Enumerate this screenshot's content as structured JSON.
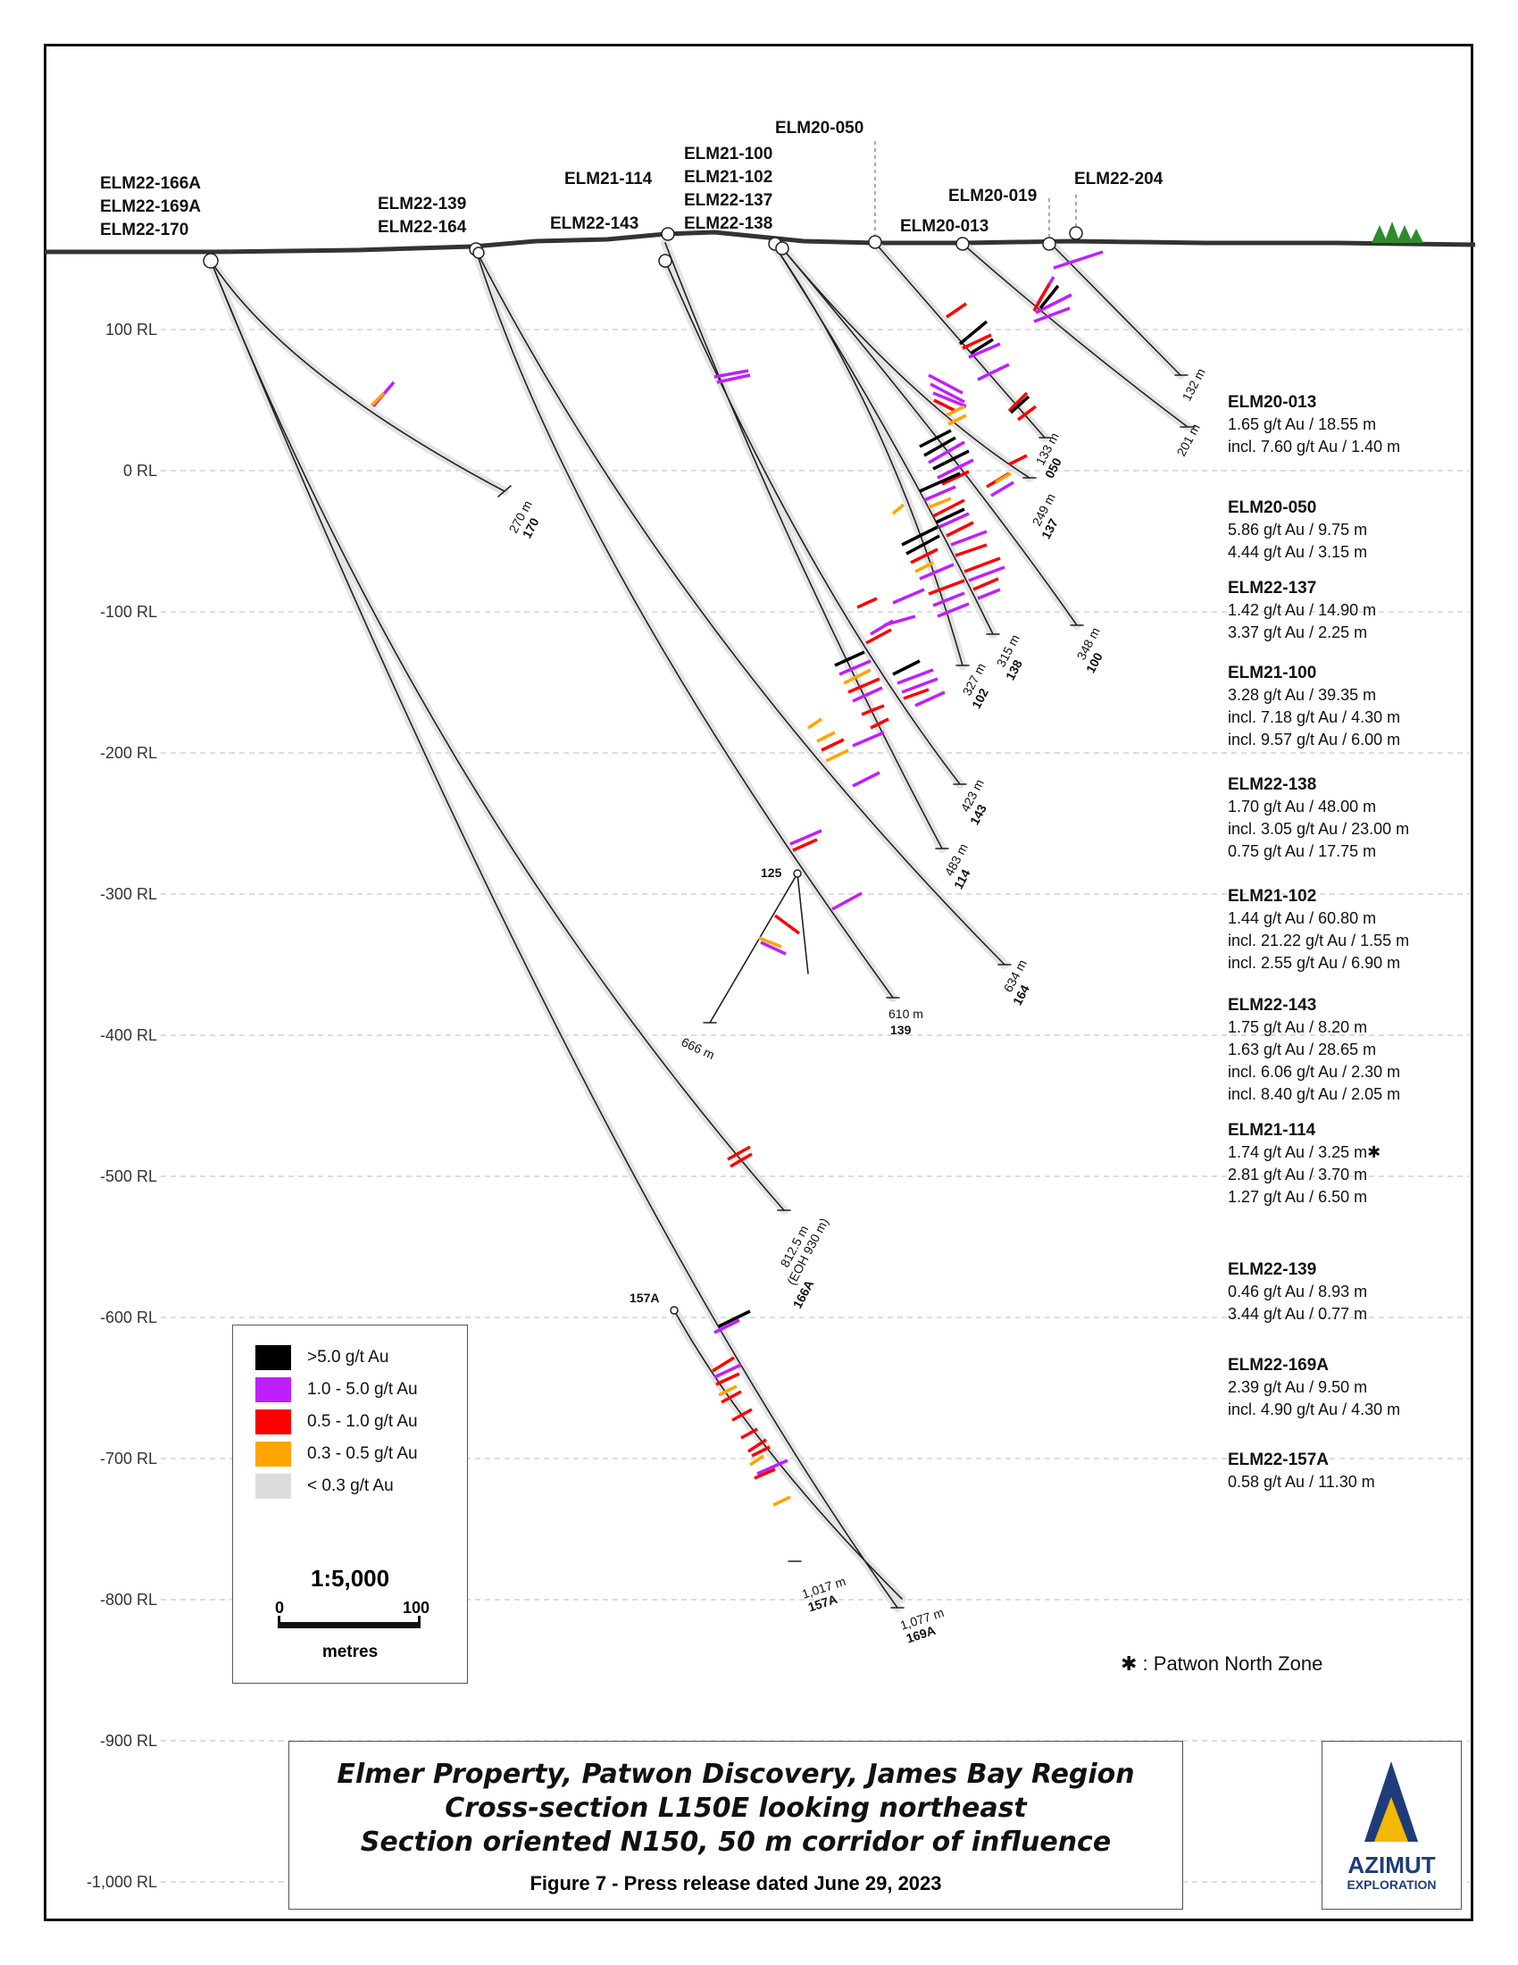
{
  "section": {
    "rl_labels": [
      "100 RL",
      "0 RL",
      "-100 RL",
      "-200 RL",
      "-300 RL",
      "-400 RL",
      "-500 RL",
      "-600 RL",
      "-700 RL",
      "-800 RL",
      "-900 RL",
      "-1,000 RL"
    ],
    "collar_labels": {
      "g1": [
        "ELM22-166A",
        "ELM22-169A",
        "ELM22-170"
      ],
      "g2": [
        "ELM22-139",
        "ELM22-164"
      ],
      "e114": "ELM21-114",
      "e143": "ELM22-143",
      "g3": [
        "ELM21-100",
        "ELM21-102",
        "ELM22-137",
        "ELM22-138"
      ],
      "e050": "ELM20-050",
      "e019": "ELM20-019",
      "e013": "ELM20-013",
      "e204": "ELM22-204"
    },
    "depth_labels": [
      {
        "m": "270 m",
        "id": "170"
      },
      {
        "m": "132 m",
        "id": ""
      },
      {
        "m": "201 m",
        "id": ""
      },
      {
        "m": "133 m",
        "id": "050"
      },
      {
        "m": "249 m",
        "id": "137"
      },
      {
        "m": "348 m",
        "id": "100"
      },
      {
        "m": "315 m",
        "id": "138"
      },
      {
        "m": "327 m",
        "id": "102"
      },
      {
        "m": "423 m",
        "id": "143"
      },
      {
        "m": "483 m",
        "id": "114"
      },
      {
        "m": "634 m",
        "id": "164"
      },
      {
        "m": "610 m",
        "id": "139"
      },
      {
        "m": "666 m",
        "id": ""
      },
      {
        "m": "812.5 m",
        "sub": "(EOH 930 m)",
        "id": "166A"
      },
      {
        "m": "1,017 m",
        "id": "157A"
      },
      {
        "m": "1,077 m",
        "id": "169A"
      }
    ],
    "wedge_labels": {
      "w125": "125",
      "w157A": "157A"
    }
  },
  "results": [
    {
      "hole": "ELM20-013",
      "lines": [
        "1.65 g/t Au / 18.55 m",
        "incl. 7.60 g/t Au / 1.40 m"
      ]
    },
    {
      "hole": "ELM20-050",
      "lines": [
        "5.86 g/t Au / 9.75 m",
        "4.44 g/t Au / 3.15 m"
      ]
    },
    {
      "hole": "ELM22-137",
      "lines": [
        "1.42 g/t Au / 14.90 m",
        "3.37 g/t Au / 2.25 m"
      ]
    },
    {
      "hole": "ELM21-100",
      "lines": [
        "3.28 g/t Au / 39.35 m",
        "incl. 7.18 g/t Au / 4.30 m",
        "incl. 9.57 g/t Au / 6.00 m"
      ]
    },
    {
      "hole": "ELM22-138",
      "lines": [
        "1.70 g/t Au / 48.00 m",
        "incl. 3.05 g/t Au / 23.00 m",
        "0.75 g/t Au / 17.75 m"
      ]
    },
    {
      "hole": "ELM21-102",
      "lines": [
        "1.44 g/t Au / 60.80 m",
        "incl. 21.22 g/t Au / 1.55 m",
        "incl. 2.55 g/t Au / 6.90 m"
      ]
    },
    {
      "hole": "ELM22-143",
      "lines": [
        "1.75 g/t Au / 8.20 m",
        "1.63 g/t Au / 28.65 m",
        "incl. 6.06 g/t Au / 2.30 m",
        "incl. 8.40 g/t Au / 2.05 m"
      ]
    },
    {
      "hole": "ELM21-114",
      "lines": [
        "1.74 g/t Au / 3.25 m✱",
        "2.81 g/t Au / 3.70 m",
        "1.27 g/t Au / 6.50 m"
      ]
    },
    {
      "hole": "ELM22-139",
      "lines": [
        "0.46 g/t Au / 8.93 m",
        "3.44 g/t Au / 0.77 m"
      ]
    },
    {
      "hole": "ELM22-169A",
      "lines": [
        "2.39 g/t Au / 9.50 m",
        "incl. 4.90 g/t Au / 4.30 m"
      ]
    },
    {
      "hole": "ELM22-157A",
      "lines": [
        "0.58 g/t Au / 11.30 m"
      ]
    }
  ],
  "legend": {
    "items": [
      {
        "label": ">5.0 g/t Au",
        "color": "#000000"
      },
      {
        "label": "1.0 - 5.0 g/t Au",
        "color": "#bf1fff"
      },
      {
        "label": "0.5 - 1.0 g/t Au",
        "color": "#ff0000"
      },
      {
        "label": "0.3 - 0.5 g/t Au",
        "color": "#ffa500"
      },
      {
        "label": "< 0.3 g/t Au",
        "color": "#dddddd"
      }
    ],
    "scale": "1:5,000",
    "scale_min": "0",
    "scale_max": "100",
    "scale_unit": "metres"
  },
  "footnote": "✱ : Patwon North Zone",
  "title": {
    "line1": "Elmer Property, Patwon Discovery, James Bay Region",
    "line2": "Cross-section L150E looking northeast",
    "line3": "Section oriented N150, 50 m corridor of influence",
    "figure": "Figure 7 - Press release dated June 29, 2023"
  },
  "logo": {
    "word": "AZIMUT",
    "sub": "EXPLORATION",
    "blue": "#1f3c7a",
    "gold": "#f5b800"
  }
}
